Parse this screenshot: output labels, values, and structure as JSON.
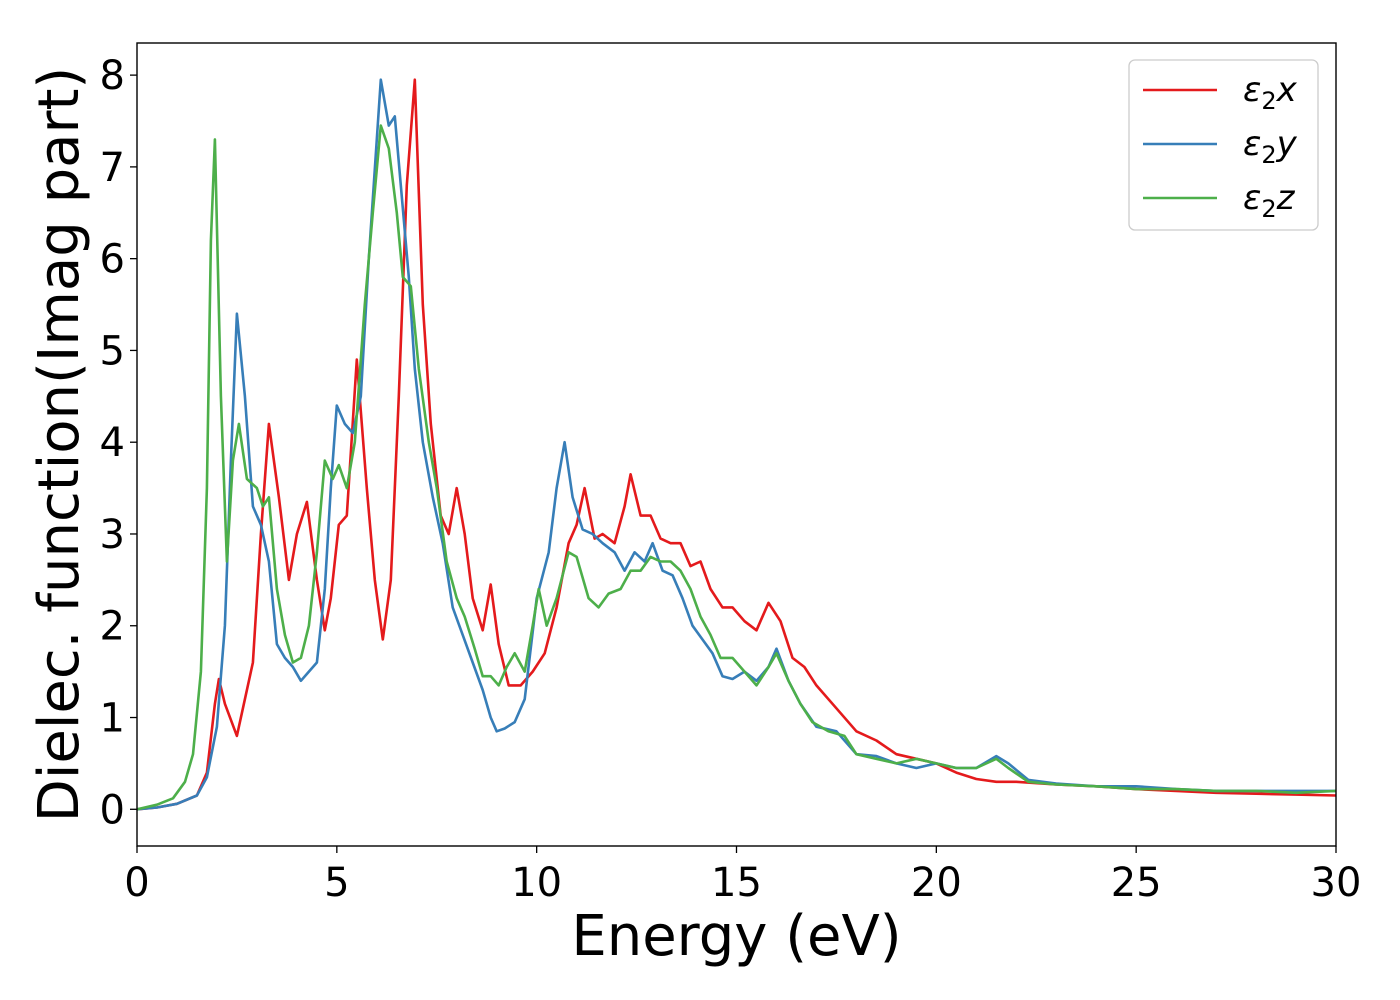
{
  "chart_data": {
    "type": "line",
    "xlabel": "Energy (eV)",
    "ylabel": "Dielec. function(Imag part)",
    "xlim": [
      0,
      30
    ],
    "ylim": [
      -0.4,
      8.35
    ],
    "xticks": [
      0,
      5,
      10,
      15,
      20,
      25,
      30
    ],
    "yticks": [
      0,
      1,
      2,
      3,
      4,
      5,
      6,
      7,
      8
    ],
    "grid": false,
    "legend_position": "top-right",
    "series": [
      {
        "name": "ε2x",
        "legend_base": "ε",
        "legend_sub": "2",
        "legend_suffix": "x",
        "color": "#e41a1c",
        "points": [
          [
            0,
            0
          ],
          [
            0.5,
            0.02
          ],
          [
            1,
            0.06
          ],
          [
            1.5,
            0.15
          ],
          [
            1.75,
            0.4
          ],
          [
            1.95,
            1.15
          ],
          [
            2.05,
            1.42
          ],
          [
            2.2,
            1.15
          ],
          [
            2.5,
            0.8
          ],
          [
            2.7,
            1.2
          ],
          [
            2.9,
            1.6
          ],
          [
            3.1,
            3.0
          ],
          [
            3.3,
            4.2
          ],
          [
            3.55,
            3.4
          ],
          [
            3.8,
            2.5
          ],
          [
            4.0,
            3.0
          ],
          [
            4.25,
            3.35
          ],
          [
            4.5,
            2.5
          ],
          [
            4.7,
            1.95
          ],
          [
            4.85,
            2.3
          ],
          [
            5.05,
            3.1
          ],
          [
            5.25,
            3.2
          ],
          [
            5.5,
            4.9
          ],
          [
            5.75,
            3.5
          ],
          [
            5.95,
            2.5
          ],
          [
            6.15,
            1.85
          ],
          [
            6.35,
            2.5
          ],
          [
            6.55,
            4.5
          ],
          [
            6.75,
            6.8
          ],
          [
            6.95,
            7.95
          ],
          [
            7.15,
            5.5
          ],
          [
            7.35,
            4.2
          ],
          [
            7.6,
            3.2
          ],
          [
            7.8,
            3.0
          ],
          [
            8.0,
            3.5
          ],
          [
            8.2,
            3.0
          ],
          [
            8.4,
            2.3
          ],
          [
            8.65,
            1.95
          ],
          [
            8.85,
            2.45
          ],
          [
            9.05,
            1.8
          ],
          [
            9.3,
            1.35
          ],
          [
            9.6,
            1.35
          ],
          [
            9.9,
            1.5
          ],
          [
            10.2,
            1.7
          ],
          [
            10.5,
            2.2
          ],
          [
            10.8,
            2.9
          ],
          [
            11.0,
            3.1
          ],
          [
            11.2,
            3.5
          ],
          [
            11.45,
            2.95
          ],
          [
            11.65,
            3.0
          ],
          [
            11.95,
            2.9
          ],
          [
            12.2,
            3.3
          ],
          [
            12.35,
            3.65
          ],
          [
            12.6,
            3.2
          ],
          [
            12.85,
            3.2
          ],
          [
            13.1,
            2.95
          ],
          [
            13.35,
            2.9
          ],
          [
            13.6,
            2.9
          ],
          [
            13.85,
            2.65
          ],
          [
            14.1,
            2.7
          ],
          [
            14.35,
            2.4
          ],
          [
            14.65,
            2.2
          ],
          [
            14.9,
            2.2
          ],
          [
            15.2,
            2.05
          ],
          [
            15.5,
            1.95
          ],
          [
            15.8,
            2.25
          ],
          [
            16.1,
            2.05
          ],
          [
            16.4,
            1.65
          ],
          [
            16.7,
            1.55
          ],
          [
            17.0,
            1.35
          ],
          [
            17.5,
            1.1
          ],
          [
            18.0,
            0.85
          ],
          [
            18.5,
            0.75
          ],
          [
            19.0,
            0.6
          ],
          [
            19.5,
            0.55
          ],
          [
            20.0,
            0.5
          ],
          [
            20.5,
            0.4
          ],
          [
            21.0,
            0.33
          ],
          [
            21.5,
            0.3
          ],
          [
            22.0,
            0.3
          ],
          [
            23.0,
            0.27
          ],
          [
            24.0,
            0.25
          ],
          [
            25.0,
            0.22
          ],
          [
            26.0,
            0.2
          ],
          [
            27.0,
            0.18
          ],
          [
            28.0,
            0.17
          ],
          [
            29.0,
            0.16
          ],
          [
            30.0,
            0.15
          ]
        ]
      },
      {
        "name": "ε2y",
        "legend_base": "ε",
        "legend_sub": "2",
        "legend_suffix": "y",
        "color": "#377eb8",
        "points": [
          [
            0,
            0
          ],
          [
            0.5,
            0.02
          ],
          [
            1,
            0.06
          ],
          [
            1.5,
            0.15
          ],
          [
            1.75,
            0.35
          ],
          [
            2.0,
            0.9
          ],
          [
            2.2,
            2.0
          ],
          [
            2.35,
            3.8
          ],
          [
            2.5,
            5.4
          ],
          [
            2.7,
            4.5
          ],
          [
            2.9,
            3.3
          ],
          [
            3.1,
            3.1
          ],
          [
            3.3,
            2.7
          ],
          [
            3.5,
            1.8
          ],
          [
            3.7,
            1.65
          ],
          [
            3.9,
            1.55
          ],
          [
            4.1,
            1.4
          ],
          [
            4.3,
            1.5
          ],
          [
            4.5,
            1.6
          ],
          [
            4.7,
            2.4
          ],
          [
            4.85,
            3.5
          ],
          [
            5.0,
            4.4
          ],
          [
            5.2,
            4.2
          ],
          [
            5.4,
            4.1
          ],
          [
            5.6,
            4.5
          ],
          [
            5.8,
            6.0
          ],
          [
            6.0,
            7.3
          ],
          [
            6.1,
            7.95
          ],
          [
            6.3,
            7.45
          ],
          [
            6.45,
            7.55
          ],
          [
            6.6,
            6.8
          ],
          [
            6.8,
            5.8
          ],
          [
            6.95,
            4.8
          ],
          [
            7.15,
            4.0
          ],
          [
            7.4,
            3.4
          ],
          [
            7.65,
            2.9
          ],
          [
            7.9,
            2.2
          ],
          [
            8.15,
            1.9
          ],
          [
            8.4,
            1.6
          ],
          [
            8.65,
            1.3
          ],
          [
            8.85,
            1.0
          ],
          [
            9.0,
            0.85
          ],
          [
            9.2,
            0.88
          ],
          [
            9.45,
            0.95
          ],
          [
            9.7,
            1.2
          ],
          [
            10.0,
            2.3
          ],
          [
            10.3,
            2.8
          ],
          [
            10.5,
            3.5
          ],
          [
            10.7,
            4.0
          ],
          [
            10.9,
            3.4
          ],
          [
            11.15,
            3.05
          ],
          [
            11.4,
            3.0
          ],
          [
            11.65,
            2.9
          ],
          [
            11.95,
            2.8
          ],
          [
            12.2,
            2.6
          ],
          [
            12.45,
            2.8
          ],
          [
            12.7,
            2.7
          ],
          [
            12.9,
            2.9
          ],
          [
            13.15,
            2.6
          ],
          [
            13.4,
            2.55
          ],
          [
            13.65,
            2.3
          ],
          [
            13.9,
            2.0
          ],
          [
            14.15,
            1.85
          ],
          [
            14.4,
            1.7
          ],
          [
            14.65,
            1.45
          ],
          [
            14.9,
            1.42
          ],
          [
            15.2,
            1.5
          ],
          [
            15.5,
            1.4
          ],
          [
            15.8,
            1.55
          ],
          [
            16.0,
            1.75
          ],
          [
            16.3,
            1.4
          ],
          [
            16.6,
            1.15
          ],
          [
            17.0,
            0.9
          ],
          [
            17.5,
            0.85
          ],
          [
            18.0,
            0.6
          ],
          [
            18.5,
            0.58
          ],
          [
            19.0,
            0.5
          ],
          [
            19.5,
            0.45
          ],
          [
            20.0,
            0.5
          ],
          [
            20.5,
            0.45
          ],
          [
            21.0,
            0.45
          ],
          [
            21.5,
            0.58
          ],
          [
            21.8,
            0.5
          ],
          [
            22.3,
            0.32
          ],
          [
            23.0,
            0.28
          ],
          [
            24.0,
            0.25
          ],
          [
            25.0,
            0.25
          ],
          [
            26.0,
            0.22
          ],
          [
            27.0,
            0.2
          ],
          [
            28.0,
            0.2
          ],
          [
            29.0,
            0.2
          ],
          [
            30.0,
            0.2
          ]
        ]
      },
      {
        "name": "ε2z",
        "legend_base": "ε",
        "legend_sub": "2",
        "legend_suffix": "z",
        "color": "#4daf4a",
        "points": [
          [
            0,
            0
          ],
          [
            0.5,
            0.05
          ],
          [
            0.9,
            0.12
          ],
          [
            1.2,
            0.3
          ],
          [
            1.4,
            0.6
          ],
          [
            1.6,
            1.5
          ],
          [
            1.75,
            3.5
          ],
          [
            1.85,
            6.2
          ],
          [
            1.95,
            7.3
          ],
          [
            2.1,
            4.5
          ],
          [
            2.25,
            2.7
          ],
          [
            2.4,
            3.8
          ],
          [
            2.55,
            4.2
          ],
          [
            2.75,
            3.6
          ],
          [
            3.0,
            3.5
          ],
          [
            3.15,
            3.3
          ],
          [
            3.3,
            3.4
          ],
          [
            3.5,
            2.4
          ],
          [
            3.7,
            1.9
          ],
          [
            3.9,
            1.6
          ],
          [
            4.1,
            1.65
          ],
          [
            4.3,
            2.0
          ],
          [
            4.5,
            2.8
          ],
          [
            4.7,
            3.8
          ],
          [
            4.9,
            3.6
          ],
          [
            5.05,
            3.75
          ],
          [
            5.25,
            3.5
          ],
          [
            5.45,
            4.0
          ],
          [
            5.7,
            5.5
          ],
          [
            5.9,
            6.5
          ],
          [
            6.1,
            7.45
          ],
          [
            6.3,
            7.2
          ],
          [
            6.5,
            6.5
          ],
          [
            6.65,
            5.8
          ],
          [
            6.85,
            5.7
          ],
          [
            7.05,
            4.8
          ],
          [
            7.3,
            4.0
          ],
          [
            7.5,
            3.5
          ],
          [
            7.75,
            2.7
          ],
          [
            8.0,
            2.3
          ],
          [
            8.2,
            2.1
          ],
          [
            8.45,
            1.75
          ],
          [
            8.65,
            1.45
          ],
          [
            8.85,
            1.45
          ],
          [
            9.05,
            1.35
          ],
          [
            9.25,
            1.55
          ],
          [
            9.45,
            1.7
          ],
          [
            9.7,
            1.5
          ],
          [
            9.9,
            2.0
          ],
          [
            10.05,
            2.4
          ],
          [
            10.25,
            2.0
          ],
          [
            10.5,
            2.3
          ],
          [
            10.8,
            2.8
          ],
          [
            11.0,
            2.75
          ],
          [
            11.3,
            2.3
          ],
          [
            11.55,
            2.2
          ],
          [
            11.8,
            2.35
          ],
          [
            12.1,
            2.4
          ],
          [
            12.35,
            2.6
          ],
          [
            12.6,
            2.6
          ],
          [
            12.85,
            2.75
          ],
          [
            13.1,
            2.7
          ],
          [
            13.35,
            2.7
          ],
          [
            13.6,
            2.6
          ],
          [
            13.85,
            2.4
          ],
          [
            14.1,
            2.1
          ],
          [
            14.35,
            1.9
          ],
          [
            14.6,
            1.65
          ],
          [
            14.9,
            1.65
          ],
          [
            15.2,
            1.5
          ],
          [
            15.5,
            1.35
          ],
          [
            15.8,
            1.55
          ],
          [
            16.0,
            1.7
          ],
          [
            16.3,
            1.4
          ],
          [
            16.6,
            1.15
          ],
          [
            16.9,
            0.95
          ],
          [
            17.3,
            0.85
          ],
          [
            17.7,
            0.8
          ],
          [
            18.0,
            0.6
          ],
          [
            18.5,
            0.55
          ],
          [
            19.0,
            0.5
          ],
          [
            19.5,
            0.55
          ],
          [
            20.0,
            0.5
          ],
          [
            20.5,
            0.45
          ],
          [
            21.0,
            0.45
          ],
          [
            21.5,
            0.55
          ],
          [
            21.8,
            0.45
          ],
          [
            22.3,
            0.3
          ],
          [
            23.0,
            0.27
          ],
          [
            24.0,
            0.25
          ],
          [
            25.0,
            0.22
          ],
          [
            26.0,
            0.22
          ],
          [
            27.0,
            0.2
          ],
          [
            28.0,
            0.2
          ],
          [
            29.0,
            0.18
          ],
          [
            30.0,
            0.2
          ]
        ]
      }
    ]
  }
}
